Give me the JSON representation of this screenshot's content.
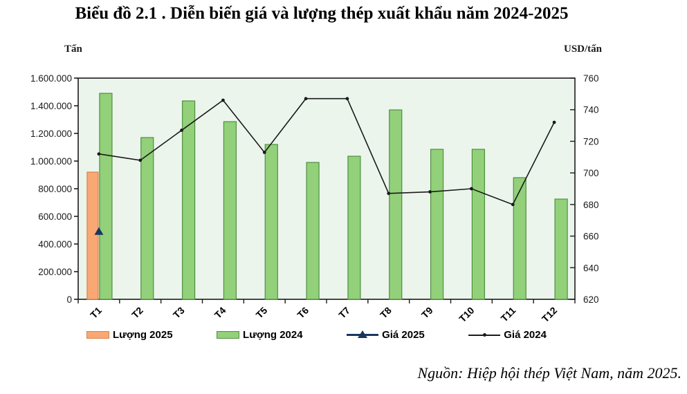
{
  "title": "Biểu đồ 2.1 . Diễn biến giá và lượng thép xuất khẩu năm 2024-2025",
  "source": "Nguồn: Hiệp hội thép Việt Nam, năm 2025.",
  "left_axis": {
    "unit": "Tấn",
    "min": 0,
    "max": 1600000,
    "tick_labels": [
      "1.600.000",
      "1.400.000",
      "1.200.000",
      "1.000.000",
      "800.000",
      "600.000",
      "400.000",
      "200.000",
      "0"
    ]
  },
  "right_axis": {
    "unit": "USD/tấn",
    "min": 620,
    "max": 760,
    "tick_labels": [
      "760",
      "740",
      "720",
      "700",
      "680",
      "660",
      "640",
      "620"
    ]
  },
  "legend": {
    "items": [
      {
        "label": "Lượng 2025",
        "swatch": "orange-bar"
      },
      {
        "label": "Lượng 2024",
        "swatch": "green-bar"
      },
      {
        "label": "Giá 2025",
        "swatch": "navy-triangle-line"
      },
      {
        "label": "Giá 2024",
        "swatch": "black-dot-line"
      }
    ]
  },
  "colors": {
    "plot_bg": "#EBF5EC",
    "axis": "#1A1A1A",
    "bar_2024_fill": "#92D07A",
    "bar_2024_stroke": "#4F8F3F",
    "bar_2025_fill": "#F9A873",
    "bar_2025_stroke": "#D9824C",
    "price_2025": "#17375E",
    "price_2024_line": "#1A1A1A"
  },
  "chart_data": {
    "type": "bar",
    "subtype": "bar+line combo, dual axis",
    "title": "Biểu đồ 2.1 . Diễn biến giá và lượng thép xuất khẩu năm 2024-2025",
    "categories": [
      "T1",
      "T2",
      "T3",
      "T4",
      "T5",
      "T6",
      "T7",
      "T8",
      "T9",
      "T10",
      "T11",
      "T12"
    ],
    "left_ylim": [
      0,
      1600000
    ],
    "right_ylim": [
      620,
      760
    ],
    "grid": false,
    "legend_position": "bottom",
    "series": [
      {
        "name": "Lượng 2025",
        "type": "bar",
        "axis": "left",
        "values": [
          920000,
          null,
          null,
          null,
          null,
          null,
          null,
          null,
          null,
          null,
          null,
          null
        ]
      },
      {
        "name": "Lượng 2024",
        "type": "bar",
        "axis": "left",
        "values": [
          1490000,
          1170000,
          1435000,
          1285000,
          1120000,
          990000,
          1035000,
          1370000,
          1085000,
          1085000,
          880000,
          725000
        ]
      },
      {
        "name": "Giá 2025",
        "type": "point-triangle",
        "axis": "right",
        "values": [
          663,
          null,
          null,
          null,
          null,
          null,
          null,
          null,
          null,
          null,
          null,
          null
        ]
      },
      {
        "name": "Giá 2024",
        "type": "line",
        "axis": "right",
        "values": [
          712,
          708,
          727,
          746,
          713,
          747,
          747,
          687,
          688,
          690,
          680,
          732
        ]
      }
    ]
  }
}
